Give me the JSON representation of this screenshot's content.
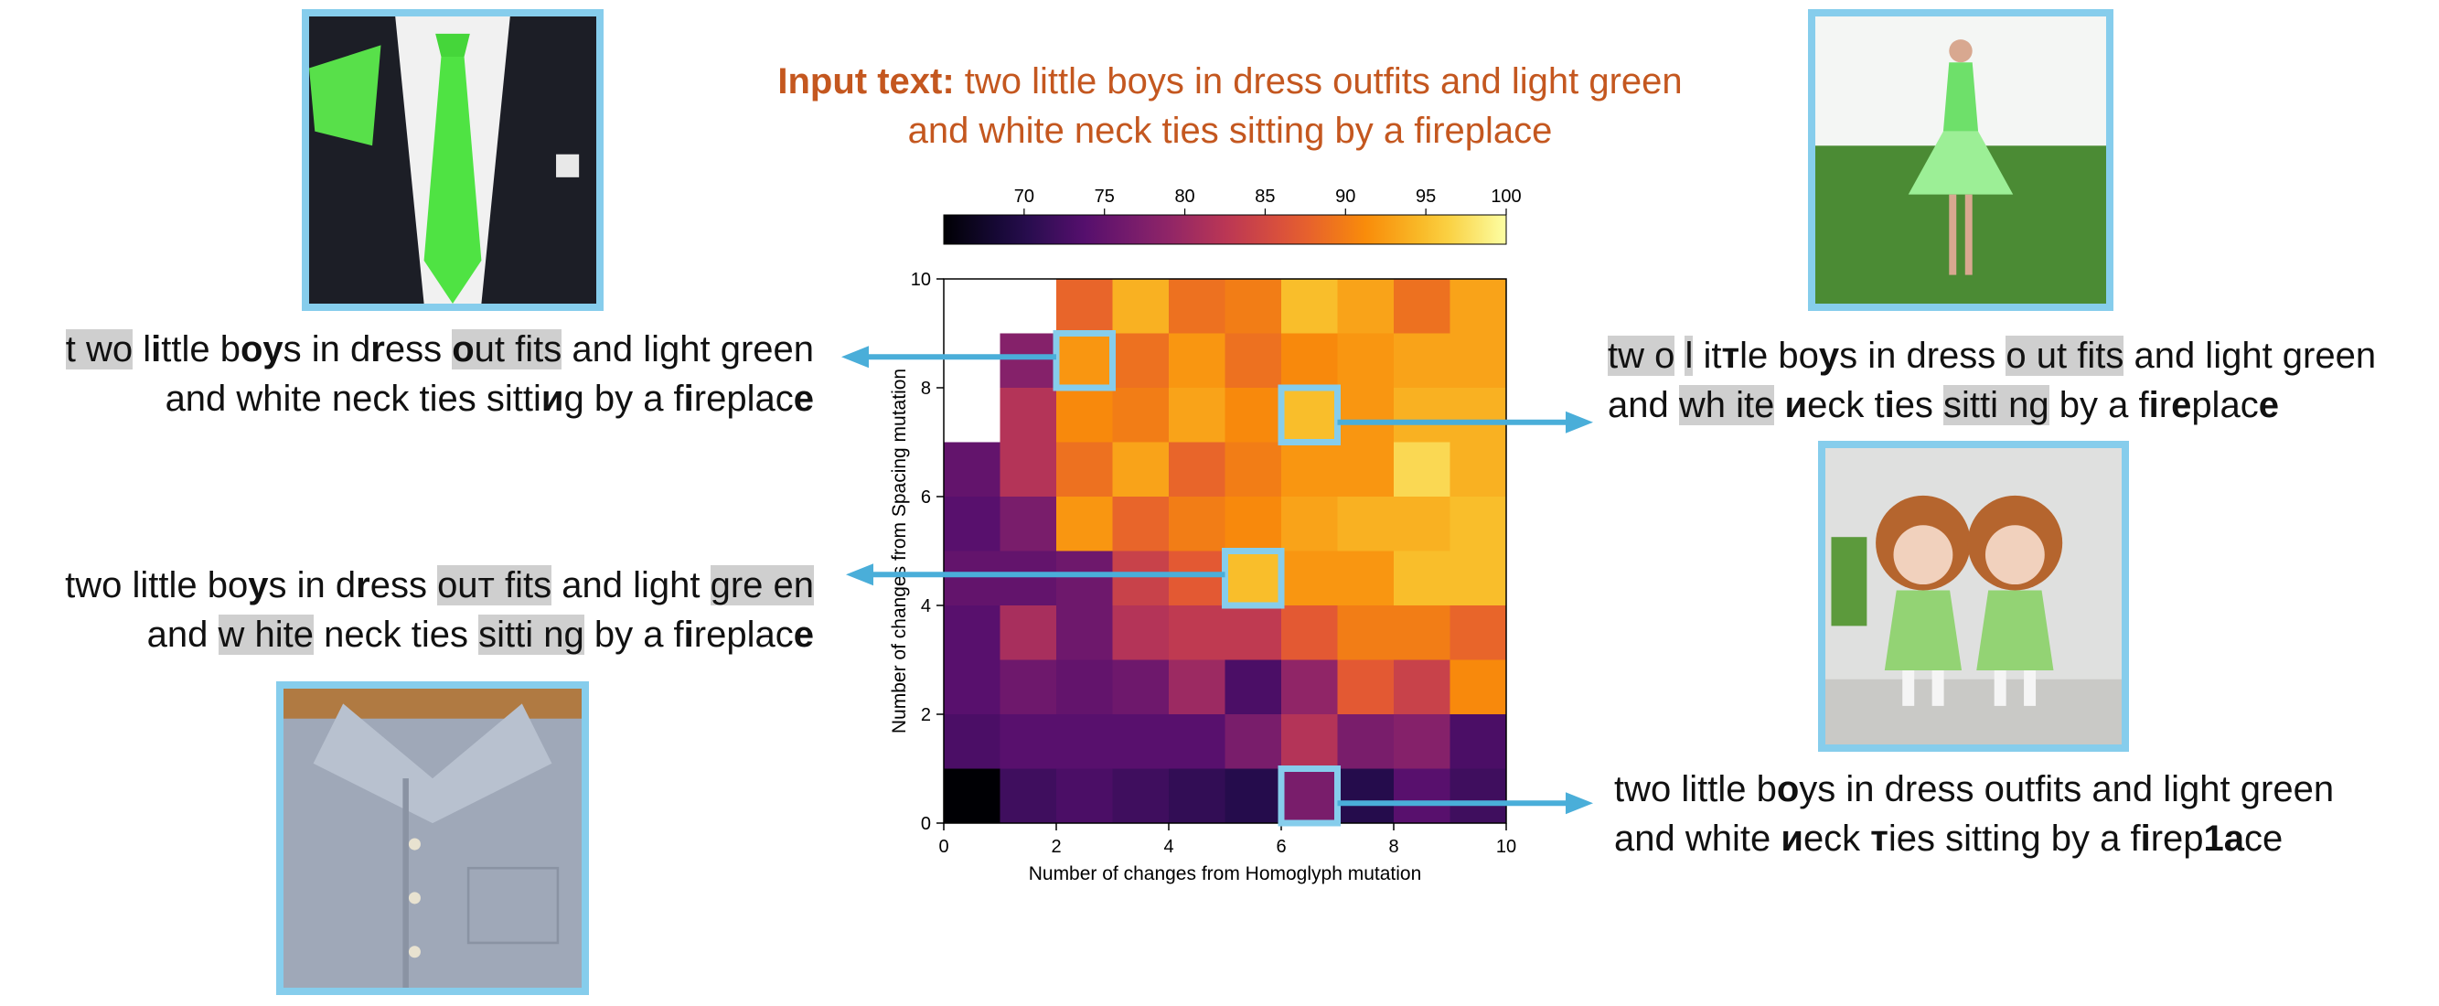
{
  "title": {
    "prefix": "Input text:",
    "text": " two little boys in dress outfits and light green and white neck ties sitting by a fireplace"
  },
  "colors": {
    "frame": "#86cdec",
    "arrow": "#4aaed9",
    "title": "#c4571f",
    "highlight": "#cfcfcf"
  },
  "images": [
    {
      "id": "top-left",
      "icon": "green-necktie-suit-photo"
    },
    {
      "id": "top-right",
      "icon": "woman-green-dress-photo"
    },
    {
      "id": "middle-right",
      "icon": "two-dolls-green-dresses-photo"
    },
    {
      "id": "bottom-left",
      "icon": "grey-shirt-photo"
    }
  ],
  "captions": [
    {
      "id": "caption-top-left",
      "lines": [
        [
          {
            "t": "t wo",
            "s": "hl"
          },
          {
            "t": " l",
            "s": ""
          },
          {
            "t": "i",
            "s": "bd"
          },
          {
            "t": "ttle b",
            "s": ""
          },
          {
            "t": "oy",
            "s": "bd"
          },
          {
            "t": "s in d",
            "s": ""
          },
          {
            "t": "r",
            "s": "bd"
          },
          {
            "t": "ess ",
            "s": ""
          },
          {
            "t": "o",
            "s": "bdhl"
          },
          {
            "t": "ut fits",
            "s": "hl"
          },
          {
            "t": " and light green",
            "s": ""
          }
        ],
        [
          {
            "t": "and white neck ties sitti",
            "s": ""
          },
          {
            "t": "и",
            "s": "bd"
          },
          {
            "t": "g by a f",
            "s": ""
          },
          {
            "t": "i",
            "s": "bd"
          },
          {
            "t": "replac",
            "s": ""
          },
          {
            "t": "e",
            "s": "bd"
          }
        ]
      ]
    },
    {
      "id": "caption-middle-left",
      "lines": [
        [
          {
            "t": "two little bo",
            "s": ""
          },
          {
            "t": "y",
            "s": "bd"
          },
          {
            "t": "s in d",
            "s": ""
          },
          {
            "t": "r",
            "s": "bd"
          },
          {
            "t": "ess ",
            "s": ""
          },
          {
            "t": "ouт",
            "s": "hl"
          },
          {
            "t": " fits",
            "s": "hl"
          },
          {
            "t": " and light ",
            "s": ""
          },
          {
            "t": "gre en",
            "s": "hl"
          }
        ],
        [
          {
            "t": "and ",
            "s": ""
          },
          {
            "t": "w hite",
            "s": "hl"
          },
          {
            "t": " neck ties ",
            "s": ""
          },
          {
            "t": "sitti ng",
            "s": "hl"
          },
          {
            "t": " by a f",
            "s": ""
          },
          {
            "t": "i",
            "s": "bd"
          },
          {
            "t": "replac",
            "s": ""
          },
          {
            "t": "e",
            "s": "bd"
          }
        ]
      ]
    },
    {
      "id": "caption-top-right",
      "lines": [
        [
          {
            "t": "tw o",
            "s": "hl"
          },
          {
            "t": " ",
            "s": ""
          },
          {
            "t": "l",
            "s": "hl"
          },
          {
            "t": " it",
            "s": ""
          },
          {
            "t": "т",
            "s": "bd"
          },
          {
            "t": "le bo",
            "s": ""
          },
          {
            "t": "y",
            "s": "bd"
          },
          {
            "t": "s in dress ",
            "s": ""
          },
          {
            "t": "o ut fits",
            "s": "hl"
          },
          {
            "t": " and light green",
            "s": ""
          }
        ],
        [
          {
            "t": "and ",
            "s": ""
          },
          {
            "t": "wh ite",
            "s": "hl"
          },
          {
            "t": " ",
            "s": ""
          },
          {
            "t": "и",
            "s": "bd"
          },
          {
            "t": "eck t",
            "s": ""
          },
          {
            "t": "i",
            "s": "bd"
          },
          {
            "t": "es ",
            "s": ""
          },
          {
            "t": "sitti ng",
            "s": "hl"
          },
          {
            "t": " by a f",
            "s": ""
          },
          {
            "t": "i",
            "s": "bd"
          },
          {
            "t": "r",
            "s": ""
          },
          {
            "t": "e",
            "s": "bd"
          },
          {
            "t": "plac",
            "s": ""
          },
          {
            "t": "e",
            "s": "bd"
          }
        ]
      ]
    },
    {
      "id": "caption-bottom-right",
      "lines": [
        [
          {
            "t": "two little b",
            "s": ""
          },
          {
            "t": "o",
            "s": "bd"
          },
          {
            "t": "ys in dress outfits and light green",
            "s": ""
          }
        ],
        [
          {
            "t": "and white ",
            "s": ""
          },
          {
            "t": "и",
            "s": "bd"
          },
          {
            "t": "eck ",
            "s": ""
          },
          {
            "t": "т",
            "s": "bd"
          },
          {
            "t": "ies sitting by a f",
            "s": ""
          },
          {
            "t": "i",
            "s": "bd"
          },
          {
            "t": "rep",
            "s": ""
          },
          {
            "t": "1a",
            "s": "bd"
          },
          {
            "t": "ce",
            "s": ""
          }
        ]
      ]
    }
  ],
  "chart_data": {
    "type": "heatmap",
    "xlabel": "Number of changes from Homoglyph mutation",
    "ylabel": "Number of changes from Spacing mutation",
    "xlim": [
      0,
      10
    ],
    "ylim": [
      0,
      10
    ],
    "xticks": [
      "0",
      "2",
      "4",
      "6",
      "8",
      "10"
    ],
    "yticks": [
      "0",
      "2",
      "4",
      "6",
      "8",
      "10"
    ],
    "colormap": "inferno",
    "colorbar": {
      "min": 65,
      "max": 100,
      "ticks": [
        "70",
        "75",
        "80",
        "85",
        "90",
        "95",
        "100"
      ],
      "position": "top"
    },
    "rows_top_to_bottom": [
      [
        null,
        null,
        88,
        94,
        89,
        90,
        95,
        93,
        89,
        93
      ],
      [
        null,
        78,
        92,
        89,
        92,
        89,
        91,
        92,
        93,
        93
      ],
      [
        null,
        82,
        91,
        90,
        93,
        91,
        95,
        92,
        94,
        94
      ],
      [
        75,
        82,
        89,
        93,
        88,
        90,
        92,
        92,
        97,
        94
      ],
      [
        74,
        77,
        92,
        88,
        90,
        91,
        93,
        94,
        94,
        95
      ],
      [
        75,
        75,
        76,
        84,
        87,
        95,
        92,
        92,
        95,
        95
      ],
      [
        74,
        81,
        76,
        82,
        83,
        83,
        87,
        90,
        90,
        88
      ],
      [
        74,
        76,
        75,
        76,
        80,
        73,
        79,
        87,
        84,
        91
      ],
      [
        73,
        74,
        74,
        74,
        74,
        77,
        82,
        77,
        78,
        73
      ],
      [
        65,
        72,
        73,
        72,
        71,
        70,
        77,
        70,
        74,
        72
      ]
    ],
    "highlighted_cells": [
      {
        "x": 2.5,
        "y": 8.5,
        "points_to": "caption-top-left"
      },
      {
        "x": 6.5,
        "y": 7.5,
        "points_to": "caption-top-right"
      },
      {
        "x": 5.5,
        "y": 4.5,
        "points_to": "caption-middle-left"
      },
      {
        "x": 6.5,
        "y": 0.5,
        "points_to": "caption-bottom-right"
      }
    ]
  }
}
